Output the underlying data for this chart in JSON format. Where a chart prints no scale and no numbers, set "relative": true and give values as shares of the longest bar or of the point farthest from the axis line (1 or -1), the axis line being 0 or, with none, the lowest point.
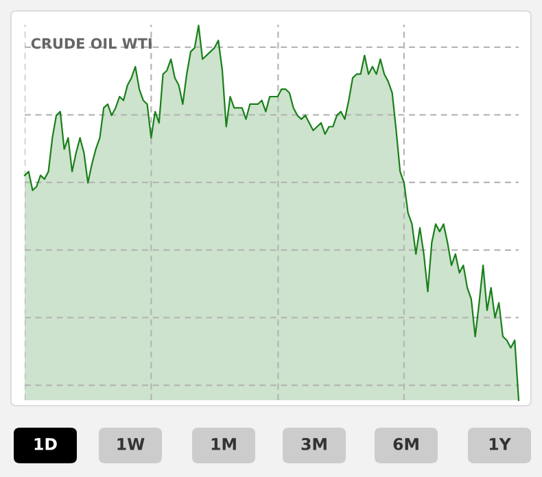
{
  "chart_data": {
    "type": "area",
    "title": "CRUDE OIL WTI",
    "relative": true,
    "grid": true,
    "categories": [
      null,
      null,
      null,
      null,
      null,
      null,
      null,
      null,
      null,
      null,
      null,
      null,
      null,
      null,
      null,
      null,
      null,
      null,
      null,
      null,
      null,
      null,
      null,
      null,
      null,
      null,
      null,
      null,
      null,
      null,
      null,
      null,
      null,
      null,
      null,
      null,
      null,
      null,
      null,
      null,
      null,
      null,
      null,
      null,
      null,
      null,
      null,
      null,
      null,
      null,
      null,
      null,
      null,
      null,
      null,
      null,
      null,
      null,
      null,
      null,
      null,
      null,
      null,
      null,
      null,
      null,
      null,
      null,
      null,
      null,
      null,
      null,
      null,
      null,
      null,
      null,
      null,
      null,
      null,
      null,
      null,
      null,
      null,
      null,
      null,
      null,
      null,
      null,
      null,
      null,
      null,
      null,
      null,
      null,
      null,
      null,
      null,
      null,
      null,
      null,
      null,
      null,
      null,
      null,
      null,
      null,
      null,
      null,
      null,
      null,
      null,
      null,
      null,
      null,
      null,
      null,
      null,
      null,
      null,
      null,
      null,
      null,
      null,
      null,
      null,
      null
    ],
    "series": [
      {
        "color": "#1a7f1a",
        "values": [
          0.6,
          0.61,
          0.56,
          0.57,
          0.6,
          0.59,
          0.61,
          0.7,
          0.76,
          0.77,
          0.67,
          0.7,
          0.61,
          0.66,
          0.7,
          0.66,
          0.58,
          0.63,
          0.67,
          0.7,
          0.78,
          0.79,
          0.76,
          0.78,
          0.81,
          0.8,
          0.84,
          0.86,
          0.89,
          0.83,
          0.8,
          0.79,
          0.7,
          0.77,
          0.74,
          0.87,
          0.88,
          0.91,
          0.86,
          0.84,
          0.79,
          0.87,
          0.93,
          0.94,
          1.0,
          0.91,
          0.92,
          0.93,
          0.94,
          0.96,
          0.88,
          0.73,
          0.81,
          0.78,
          0.78,
          0.78,
          0.75,
          0.79,
          0.79,
          0.79,
          0.8,
          0.77,
          0.81,
          0.81,
          0.81,
          0.83,
          0.83,
          0.82,
          0.78,
          0.76,
          0.75,
          0.76,
          0.74,
          0.72,
          0.73,
          0.74,
          0.71,
          0.73,
          0.73,
          0.76,
          0.77,
          0.75,
          0.8,
          0.86,
          0.87,
          0.87,
          0.92,
          0.87,
          0.89,
          0.87,
          0.91,
          0.87,
          0.85,
          0.82,
          0.72,
          0.61,
          0.58,
          0.5,
          0.47,
          0.39,
          0.46,
          0.39,
          0.29,
          0.42,
          0.47,
          0.45,
          0.47,
          0.42,
          0.36,
          0.39,
          0.34,
          0.36,
          0.3,
          0.27,
          0.17,
          0.26,
          0.36,
          0.24,
          0.3,
          0.22,
          0.26,
          0.17,
          0.16,
          0.14,
          0.16,
          0.0
        ]
      }
    ],
    "annotations": [
      "1D",
      "1W",
      "1M",
      "3M",
      "6M",
      "1Y"
    ]
  }
}
